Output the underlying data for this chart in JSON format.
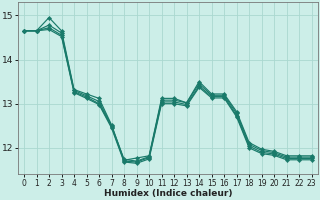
{
  "xlabel": "Humidex (Indice chaleur)",
  "background_color": "#cceee8",
  "grid_color": "#aad8d0",
  "line_color": "#197a6a",
  "xlim": [
    -0.5,
    23.5
  ],
  "ylim": [
    11.4,
    15.3
  ],
  "yticks": [
    12,
    13,
    14,
    15
  ],
  "xticks": [
    0,
    1,
    2,
    3,
    4,
    5,
    6,
    7,
    8,
    9,
    10,
    11,
    12,
    13,
    14,
    15,
    16,
    17,
    18,
    19,
    20,
    21,
    22,
    23
  ],
  "series": [
    [
      14.65,
      14.65,
      14.95,
      14.65,
      13.32,
      13.22,
      13.12,
      12.52,
      11.72,
      11.77,
      11.82,
      13.12,
      13.12,
      13.02,
      13.5,
      13.22,
      13.22,
      12.82,
      12.12,
      11.97,
      11.92,
      11.82,
      11.82,
      11.82
    ],
    [
      14.65,
      14.65,
      14.78,
      14.6,
      13.3,
      13.18,
      13.05,
      12.5,
      11.74,
      11.7,
      11.8,
      13.08,
      13.08,
      13.02,
      13.45,
      13.19,
      13.19,
      12.78,
      12.08,
      11.94,
      11.89,
      11.79,
      11.79,
      11.79
    ],
    [
      14.65,
      14.65,
      14.72,
      14.55,
      13.27,
      13.15,
      13.0,
      12.48,
      11.7,
      11.68,
      11.78,
      13.04,
      13.04,
      12.98,
      13.4,
      13.16,
      13.16,
      12.73,
      12.04,
      11.9,
      11.86,
      11.76,
      11.76,
      11.76
    ],
    [
      14.65,
      14.65,
      14.68,
      14.52,
      13.25,
      13.12,
      12.98,
      12.45,
      11.68,
      11.65,
      11.75,
      13.0,
      13.0,
      12.95,
      13.37,
      13.13,
      13.13,
      12.7,
      12.0,
      11.87,
      11.83,
      11.73,
      11.73,
      11.73
    ]
  ]
}
